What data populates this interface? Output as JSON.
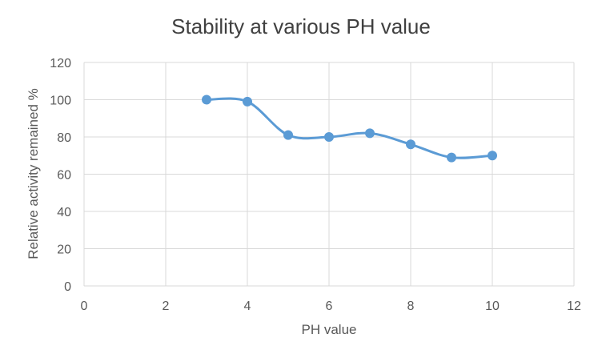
{
  "chart_data": {
    "type": "line",
    "title": "Stability at various PH value",
    "xlabel": "PH value",
    "ylabel": "Relative activity remained %",
    "xlim": [
      0,
      12
    ],
    "ylim": [
      0,
      120
    ],
    "xticks": [
      0,
      2,
      4,
      6,
      8,
      10,
      12
    ],
    "yticks": [
      0,
      20,
      40,
      60,
      80,
      100,
      120
    ],
    "grid": true,
    "smooth": true,
    "series": [
      {
        "color": "#5B9BD5",
        "x": [
          3,
          4,
          5,
          6,
          7,
          8,
          9,
          10
        ],
        "y": [
          100,
          99,
          81,
          80,
          82,
          76,
          69,
          70
        ]
      }
    ]
  }
}
